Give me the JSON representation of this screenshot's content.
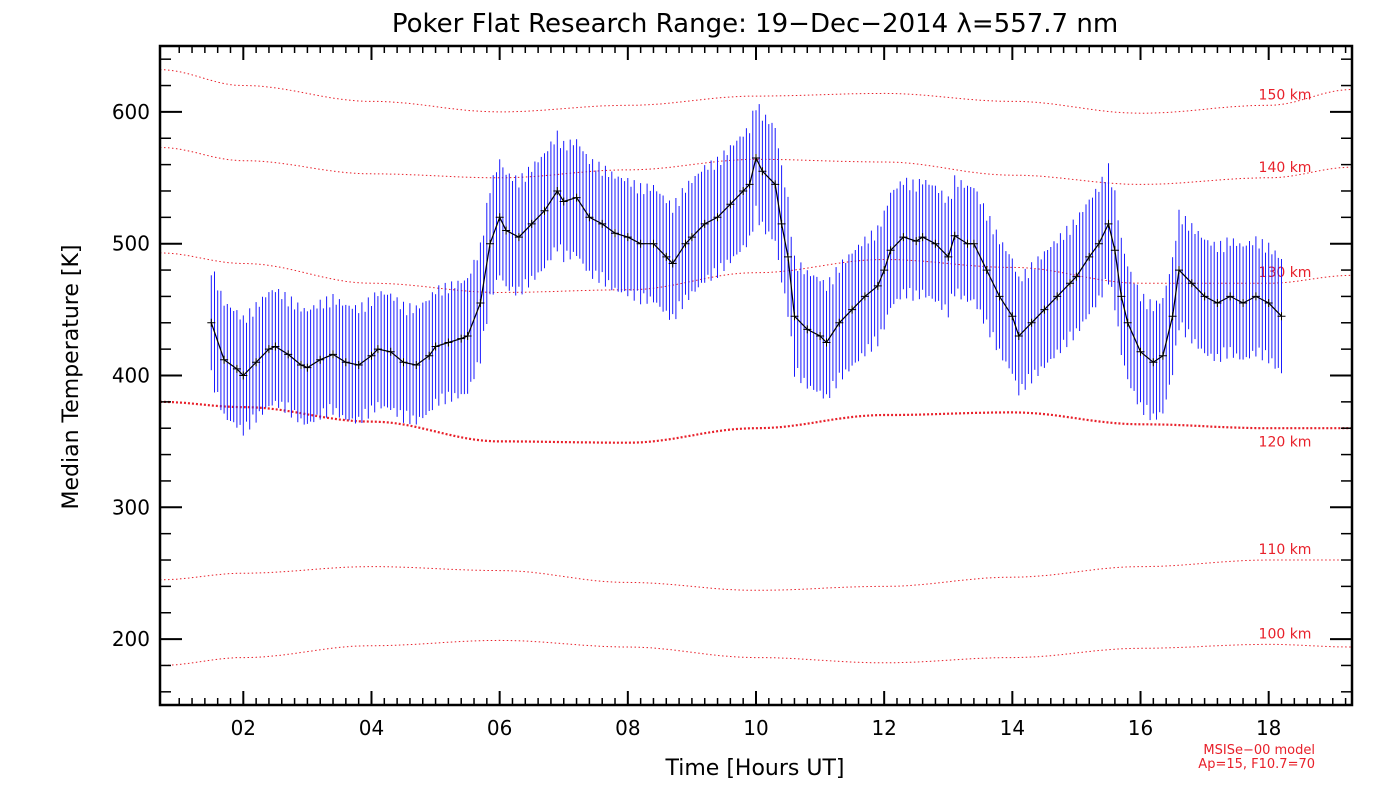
{
  "chart_data": {
    "type": "line",
    "title": "Poker Flat Research Range: 19−Dec−2014 λ=557.7 nm",
    "xlabel": "Time [Hours UT]",
    "ylabel": "Median Temperature [K]",
    "xlim": [
      0.7,
      19.3
    ],
    "ylim": [
      150,
      650
    ],
    "xticks": [
      2,
      4,
      6,
      8,
      10,
      12,
      14,
      16,
      18
    ],
    "xtick_labels": [
      "02",
      "04",
      "06",
      "08",
      "10",
      "12",
      "14",
      "16",
      "18"
    ],
    "yticks": [
      200,
      300,
      400,
      500,
      600
    ],
    "ytick_labels": [
      "200",
      "300",
      "400",
      "500",
      "600"
    ],
    "grid": false,
    "colors": {
      "data": "#000000",
      "error": "#1a1aff",
      "model": "#e8202a"
    },
    "series": [
      {
        "name": "",
        "x": [
          1.5,
          1.7,
          1.9,
          2.0,
          2.2,
          2.4,
          2.5,
          2.7,
          2.9,
          3.0,
          3.2,
          3.4,
          3.6,
          3.8,
          4.0,
          4.1,
          4.3,
          4.5,
          4.7,
          4.9,
          5.0,
          5.2,
          5.4,
          5.5,
          5.7,
          5.85,
          6.0,
          6.1,
          6.3,
          6.5,
          6.7,
          6.9,
          7.0,
          7.2,
          7.4,
          7.6,
          7.8,
          8.0,
          8.2,
          8.4,
          8.6,
          8.7,
          8.9,
          9.0,
          9.2,
          9.4,
          9.6,
          9.8,
          9.9,
          10.0,
          10.1,
          10.3,
          10.4,
          10.5,
          10.6,
          10.8,
          11.0,
          11.1,
          11.3,
          11.5,
          11.7,
          11.9,
          12.0,
          12.1,
          12.3,
          12.5,
          12.6,
          12.8,
          13.0,
          13.1,
          13.3,
          13.4,
          13.6,
          13.8,
          14.0,
          14.1,
          14.3,
          14.5,
          14.7,
          14.9,
          15.0,
          15.2,
          15.35,
          15.5,
          15.6,
          15.7,
          15.8,
          16.0,
          16.2,
          16.35,
          16.5,
          16.6,
          16.8,
          17.0,
          17.2,
          17.4,
          17.6,
          17.8,
          18.0,
          18.2
        ],
        "y": [
          440,
          412,
          405,
          400,
          410,
          420,
          422,
          416,
          408,
          406,
          412,
          416,
          410,
          408,
          415,
          420,
          418,
          410,
          408,
          415,
          422,
          425,
          428,
          430,
          455,
          500,
          520,
          510,
          505,
          515,
          525,
          540,
          532,
          535,
          520,
          515,
          508,
          505,
          500,
          500,
          490,
          485,
          500,
          505,
          515,
          520,
          530,
          540,
          545,
          565,
          555,
          545,
          515,
          490,
          445,
          435,
          430,
          425,
          440,
          450,
          460,
          468,
          480,
          495,
          505,
          502,
          505,
          500,
          490,
          506,
          500,
          500,
          480,
          460,
          445,
          430,
          440,
          450,
          460,
          470,
          475,
          490,
          500,
          515,
          495,
          460,
          440,
          418,
          410,
          415,
          445,
          480,
          470,
          460,
          455,
          460,
          455,
          460,
          455,
          445
        ],
        "error_halfwidth": 40
      }
    ],
    "model_lines": [
      {
        "name": "100 km",
        "x": [
          0.7,
          2,
          4,
          6,
          8,
          10,
          12,
          14,
          16,
          18,
          19.3
        ],
        "y": [
          180,
          186,
          195,
          199,
          194,
          186,
          182,
          186,
          193,
          196,
          194
        ]
      },
      {
        "name": "110 km",
        "x": [
          0.7,
          2,
          4,
          6,
          8,
          10,
          12,
          14,
          16,
          18,
          19.3
        ],
        "y": [
          245,
          250,
          255,
          252,
          243,
          237,
          240,
          247,
          255,
          260,
          260
        ]
      },
      {
        "name": "120 km",
        "x": [
          0.7,
          2,
          4,
          6,
          8,
          10,
          12,
          14,
          16,
          18,
          19.3
        ],
        "y": [
          380,
          376,
          365,
          350,
          349,
          360,
          370,
          372,
          363,
          360,
          360
        ]
      },
      {
        "name": "130 km",
        "x": [
          0.7,
          2,
          4,
          6,
          8,
          10,
          12,
          14,
          16,
          18,
          19.3
        ],
        "y": [
          493,
          485,
          470,
          463,
          465,
          478,
          488,
          482,
          470,
          470,
          476
        ]
      },
      {
        "name": "140 km",
        "x": [
          0.7,
          2,
          4,
          6,
          8,
          10,
          12,
          14,
          16,
          18,
          19.3
        ],
        "y": [
          573,
          563,
          553,
          550,
          556,
          564,
          562,
          552,
          545,
          550,
          558
        ]
      },
      {
        "name": "150 km",
        "x": [
          0.7,
          2,
          4,
          6,
          8,
          10,
          12,
          14,
          16,
          18,
          19.3
        ],
        "y": [
          632,
          620,
          608,
          600,
          605,
          612,
          614,
          608,
          599,
          605,
          617
        ]
      }
    ],
    "annotations": [
      "MSISe−00 model",
      "Ap=15, F10.7=70"
    ]
  }
}
